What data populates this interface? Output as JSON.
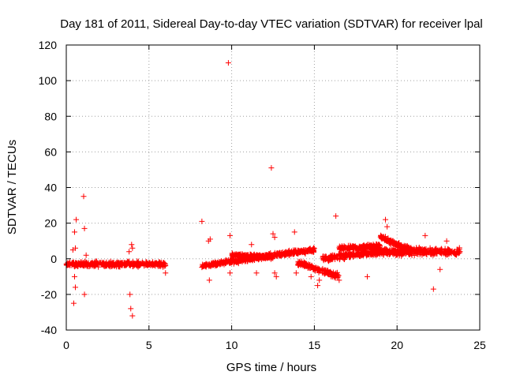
{
  "chart_data": {
    "type": "scatter",
    "title": "Day 181 of 2011, Sidereal Day-to-day VTEC variation (SDTVAR) for receiver lpal",
    "xlabel": "GPS time / hours",
    "ylabel": "SDTVAR / TECUs",
    "xlim": [
      0,
      25
    ],
    "ylim": [
      -40,
      120
    ],
    "xticks": [
      0,
      5,
      10,
      15,
      20,
      25
    ],
    "yticks": [
      -40,
      -20,
      0,
      20,
      40,
      60,
      80,
      100,
      120
    ],
    "grid": true,
    "legend": "none",
    "marker": "+",
    "color": "#ff0000",
    "series": [
      {
        "name": "SDTVAR",
        "dense_bands": [
          {
            "x": [
              0.0,
              6.0
            ],
            "center": [
              -3,
              -3
            ],
            "spread": 2.0
          },
          {
            "x": [
              8.2,
              12.5
            ],
            "center": [
              -4,
              2
            ],
            "spread": 1.8
          },
          {
            "x": [
              10.0,
              12.5
            ],
            "center": [
              2,
              1
            ],
            "spread": 1.5
          },
          {
            "x": [
              12.5,
              15.0
            ],
            "center": [
              2,
              5
            ],
            "spread": 1.8
          },
          {
            "x": [
              14.0,
              16.5
            ],
            "center": [
              -2,
              -10
            ],
            "spread": 2.0
          },
          {
            "x": [
              15.5,
              19.0
            ],
            "center": [
              0,
              4
            ],
            "spread": 2.2
          },
          {
            "x": [
              16.5,
              19.0
            ],
            "center": [
              6,
              7
            ],
            "spread": 2.0
          },
          {
            "x": [
              19.0,
              21.0
            ],
            "center": [
              12,
              4
            ],
            "spread": 2.0
          },
          {
            "x": [
              18.5,
              23.8
            ],
            "center": [
              4,
              4
            ],
            "spread": 3.0
          }
        ],
        "points": [
          [
            0.4,
            5
          ],
          [
            0.5,
            15
          ],
          [
            0.55,
            6
          ],
          [
            0.6,
            22
          ],
          [
            0.5,
            -10
          ],
          [
            0.55,
            -16
          ],
          [
            0.45,
            -25
          ],
          [
            1.05,
            35
          ],
          [
            1.1,
            17
          ],
          [
            1.1,
            -20
          ],
          [
            1.2,
            2
          ],
          [
            3.85,
            -20
          ],
          [
            3.9,
            -28
          ],
          [
            4.0,
            -32
          ],
          [
            3.95,
            8
          ],
          [
            4.0,
            6
          ],
          [
            3.8,
            4
          ],
          [
            6.0,
            -8
          ],
          [
            8.2,
            21
          ],
          [
            8.6,
            10
          ],
          [
            8.7,
            11
          ],
          [
            8.65,
            -12
          ],
          [
            9.8,
            110
          ],
          [
            9.9,
            13
          ],
          [
            9.9,
            -8
          ],
          [
            11.2,
            8
          ],
          [
            11.5,
            -8
          ],
          [
            12.4,
            51
          ],
          [
            12.5,
            14
          ],
          [
            12.6,
            12
          ],
          [
            12.6,
            -8
          ],
          [
            12.7,
            -10
          ],
          [
            13.8,
            15
          ],
          [
            13.9,
            -8
          ],
          [
            14.8,
            -10
          ],
          [
            15.2,
            -15
          ],
          [
            15.3,
            -12
          ],
          [
            16.3,
            24
          ],
          [
            16.5,
            -12
          ],
          [
            18.2,
            -10
          ],
          [
            19.3,
            22
          ],
          [
            19.4,
            18
          ],
          [
            21.7,
            13
          ],
          [
            22.2,
            -17
          ],
          [
            22.6,
            -6
          ],
          [
            23.0,
            10
          ]
        ]
      }
    ]
  }
}
